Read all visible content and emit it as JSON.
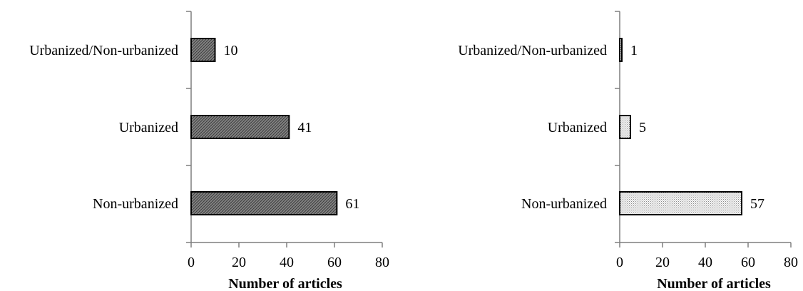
{
  "chart_data": [
    {
      "type": "bar",
      "orientation": "horizontal",
      "categories": [
        "Urbanized/Non-urbanized",
        "Urbanized",
        "Non-urbanized"
      ],
      "values": [
        10,
        41,
        61
      ],
      "xlabel": "Number of articles",
      "ylabel": "",
      "xlim": [
        0,
        80
      ],
      "xticks": [
        "0",
        "20",
        "40",
        "60",
        "80"
      ],
      "data_labels": [
        "10",
        "41",
        "61"
      ],
      "bar_color": "#7f7f7f",
      "bar_pattern": "dense-crosshatch",
      "grid": false,
      "legend": "none"
    },
    {
      "type": "bar",
      "orientation": "horizontal",
      "categories": [
        "Urbanized/Non-urbanized",
        "Urbanized",
        "Non-urbanized"
      ],
      "values": [
        1,
        5,
        57
      ],
      "xlabel": "Number of articles",
      "ylabel": "",
      "xlim": [
        0,
        80
      ],
      "xticks": [
        "0",
        "20",
        "40",
        "60",
        "80"
      ],
      "data_labels": [
        "1",
        "5",
        "57"
      ],
      "bar_color": "#e6e6e6",
      "bar_pattern": "light-dots",
      "grid": false,
      "legend": "none"
    }
  ]
}
